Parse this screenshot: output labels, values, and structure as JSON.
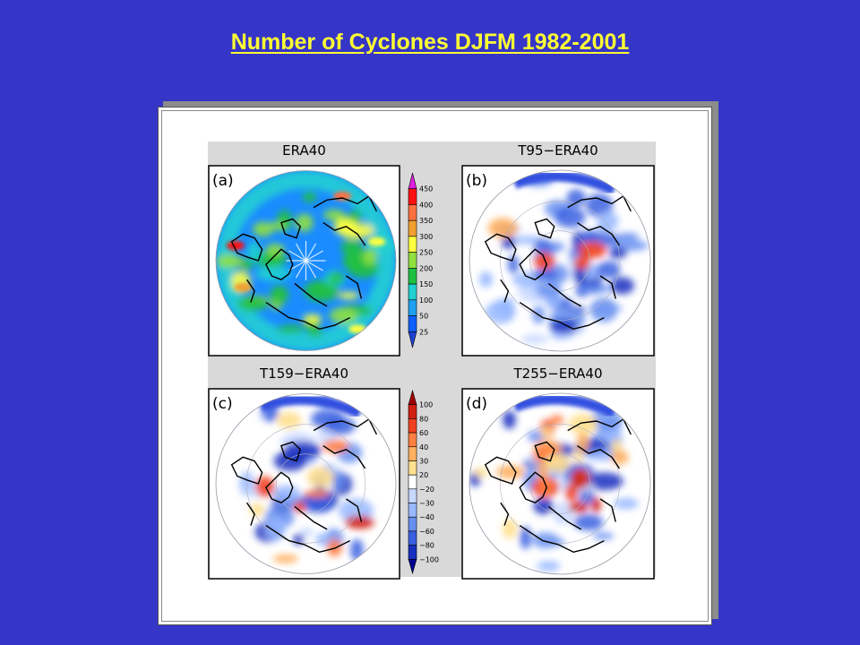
{
  "slide": {
    "title": "Number of Cyclones DJFM 1982-2001"
  },
  "panels": [
    {
      "id": "a",
      "label": "(a)",
      "title": "ERA40"
    },
    {
      "id": "b",
      "label": "(b)",
      "title": "T95−ERA40"
    },
    {
      "id": "c",
      "label": "(c)",
      "title": "T159−ERA40"
    },
    {
      "id": "d",
      "label": "(d)",
      "title": "T255−ERA40"
    }
  ],
  "colorbar_absolute": {
    "ticks": [
      "450",
      "400",
      "350",
      "300",
      "250",
      "200",
      "150",
      "100",
      "50",
      "25"
    ],
    "colors": [
      "#e020e0",
      "#ff1010",
      "#ff7040",
      "#f0a030",
      "#ffff40",
      "#90e040",
      "#20c040",
      "#20d0d0",
      "#20a0f0",
      "#1060ff",
      "#2040d0"
    ]
  },
  "colorbar_difference": {
    "ticks": [
      "100",
      "80",
      "60",
      "40",
      "30",
      "20",
      "−20",
      "−30",
      "−40",
      "−60",
      "−80",
      "−100"
    ],
    "colors": [
      "#a00000",
      "#d02010",
      "#f04020",
      "#ff8040",
      "#ffb060",
      "#ffe090",
      "#ffffff",
      "#c8d8ff",
      "#98b8ff",
      "#6890f0",
      "#3860e0",
      "#1830c0",
      "#000090"
    ]
  },
  "colors": {
    "background": "#3535c8",
    "title": "#ffff33"
  }
}
